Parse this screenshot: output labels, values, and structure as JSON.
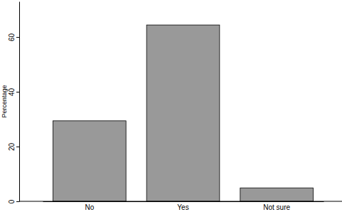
{
  "chart_data": {
    "type": "bar",
    "y_label": "Percentage",
    "categories": [
      "No",
      "Yes",
      "Not sure"
    ],
    "values": [
      29.4,
      64.4,
      4.9
    ],
    "color": "#999999",
    "ylim": [
      0,
      73
    ],
    "yticks": [
      0,
      20,
      40,
      60
    ],
    "grid": false
  }
}
